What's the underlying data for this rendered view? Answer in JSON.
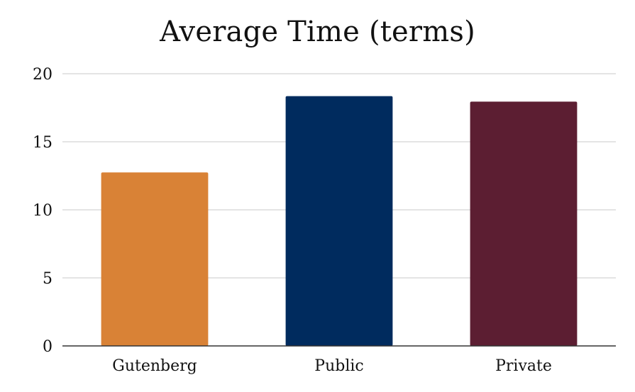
{
  "chart_data": {
    "type": "bar",
    "title": "Average Time (terms)",
    "xlabel": "",
    "ylabel": "",
    "categories": [
      "Gutenberg",
      "Public",
      "Private"
    ],
    "values": [
      12.75,
      18.35,
      17.95
    ],
    "colors": [
      "#D98236",
      "#002B5E",
      "#5C1E32"
    ],
    "ylim": [
      0,
      20
    ],
    "yticks": [
      0,
      5,
      10,
      15,
      20
    ],
    "grid": true,
    "legend": "none"
  }
}
